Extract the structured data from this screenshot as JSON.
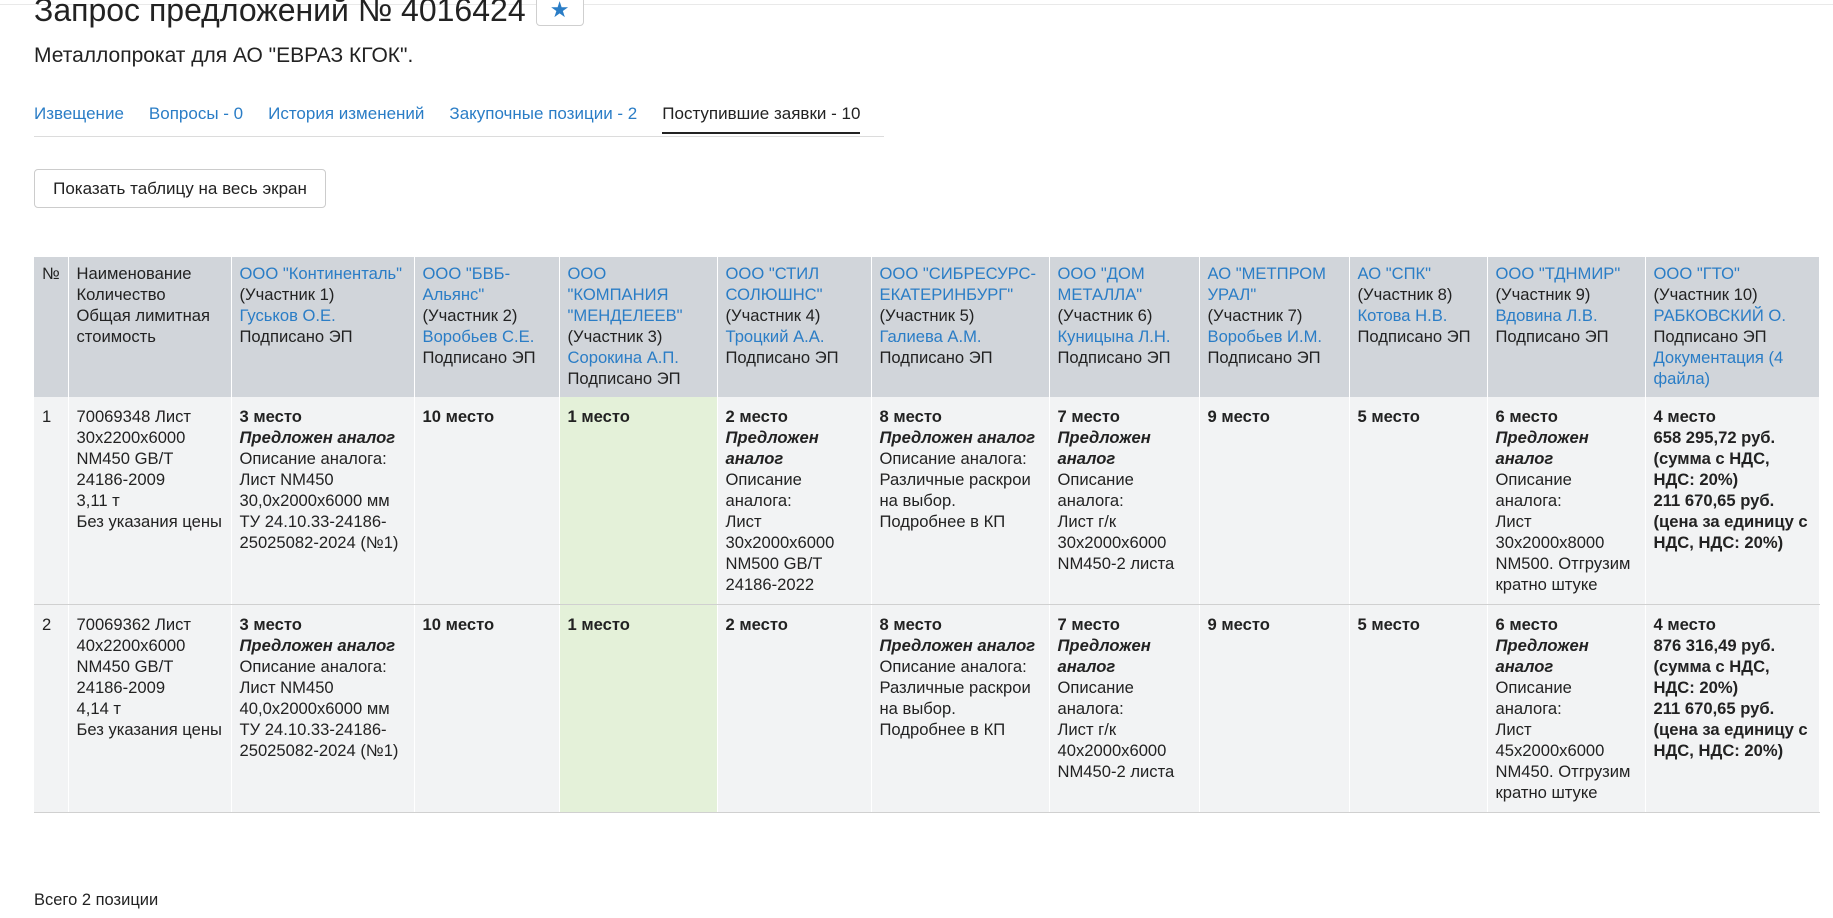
{
  "header": {
    "title": "Запрос предложений № 4016424",
    "star_icon": "★",
    "subtitle": "Металлопрокат для АО \"ЕВРАЗ КГОК\"."
  },
  "tabs": [
    {
      "label": "Извещение",
      "active": false
    },
    {
      "label": "Вопросы - 0",
      "active": false
    },
    {
      "label": "История изменений",
      "active": false
    },
    {
      "label": "Закупочные позиции - 2",
      "active": false
    },
    {
      "label": "Поступившие заявки - 10",
      "active": true
    }
  ],
  "fullscreen_button": "Показать таблицу на весь экран",
  "table": {
    "col_num": "№",
    "col_item": [
      "Наименование",
      "Количество",
      "Общая лимитная стоимость"
    ],
    "participants": [
      {
        "org": "ООО \"Континенталь\"",
        "tag": "(Участник 1)",
        "person": "Гуськов О.Е.",
        "status": "Подписано ЭП"
      },
      {
        "org": "ООО \"БВБ-Альянс\"",
        "tag": "(Участник 2)",
        "person": "Воробьев С.Е.",
        "status": "Подписано ЭП"
      },
      {
        "org": "ООО \"КОМПАНИЯ \"МЕНДЕЛЕЕВ\"",
        "tag": "(Участник 3)",
        "person": "Сорокина А.П.",
        "status": "Подписано ЭП"
      },
      {
        "org": "ООО \"СТИЛ СОЛЮШНС\"",
        "tag": "(Участник 4)",
        "person": "Троцкий А.А.",
        "status": "Подписано ЭП"
      },
      {
        "org": "ООО \"СИБРЕСУРС-ЕКАТЕРИНБУРГ\"",
        "tag": "(Участник 5)",
        "person": "Галиева А.М.",
        "status": "Подписано ЭП"
      },
      {
        "org": "ООО \"ДОМ МЕТАЛЛА\"",
        "tag": "(Участник 6)",
        "person": "Куницына Л.Н.",
        "status": "Подписано ЭП"
      },
      {
        "org": "АО \"МЕТПРОМ УРАЛ\"",
        "tag": "(Участник 7)",
        "person": "Воробьев И.М.",
        "status": "Подписано ЭП"
      },
      {
        "org": "АО \"СПК\"",
        "tag": "(Участник 8)",
        "person": "Котова Н.В.",
        "status": "Подписано ЭП"
      },
      {
        "org": "ООО \"ТДНМИР\"",
        "tag": "(Участник 9)",
        "person": "Вдовина Л.В.",
        "status": "Подписано ЭП"
      },
      {
        "org": "ООО \"ГТО\"",
        "tag": "(Участник 10)",
        "person": "РАБКОВСКИЙ О.",
        "status": "Подписано ЭП",
        "docs": "Документация (4 файла)"
      }
    ],
    "rows": [
      {
        "num": "1",
        "item": [
          "70069348 Лист 30х2200х6000 NM450 GB/T 24186-2009",
          "3,11 т",
          "Без указания цены"
        ],
        "bids": [
          {
            "place": "3 место",
            "analog": "Предложен аналог",
            "desc": [
              "Описание аналога:",
              "Лист NM450 30,0х2000х6000 мм ТУ 24.10.33-24186-25025082-2024 (№1)"
            ]
          },
          {
            "place": "10 место"
          },
          {
            "place": "1 место"
          },
          {
            "place": "2 место",
            "analog": "Предложен аналог",
            "desc": [
              "Описание аналога:",
              "Лист 30х2000х6000 NM500 GB/T 24186-2022"
            ]
          },
          {
            "place": "8 место",
            "analog": "Предложен аналог",
            "desc": [
              "Описание аналога:",
              "Различные раскрои на выбор.",
              "Подробнее в КП"
            ]
          },
          {
            "place": "7 место",
            "analog": "Предложен аналог",
            "desc": [
              "Описание аналога:",
              "Лист г/к 30х2000х6000 NM450-2 листа"
            ]
          },
          {
            "place": "9 место"
          },
          {
            "place": "5 место"
          },
          {
            "place": "6 место",
            "analog": "Предложен аналог",
            "desc": [
              "Описание аналога:",
              "Лист 30х2000х8000 NM500. Отгрузим кратно штуке"
            ]
          },
          {
            "place": "4 место",
            "prices": [
              "658 295,72 руб. (сумма с НДС, НДС: 20%)",
              "211 670,65 руб. (цена за единицу с НДС, НДС: 20%)"
            ]
          }
        ]
      },
      {
        "num": "2",
        "item": [
          "70069362 Лист 40х2200х6000 NM450 GB/T 24186-2009",
          "4,14 т",
          "Без указания цены"
        ],
        "bids": [
          {
            "place": "3 место",
            "analog": "Предложен аналог",
            "desc": [
              "Описание аналога:",
              "Лист NM450 40,0х2000х6000 мм ТУ 24.10.33-24186-25025082-2024 (№1)"
            ]
          },
          {
            "place": "10 место"
          },
          {
            "place": "1 место"
          },
          {
            "place": "2 место"
          },
          {
            "place": "8 место",
            "analog": "Предложен аналог",
            "desc": [
              "Описание аналога:",
              "Различные раскрои на выбор.",
              "Подробнее в КП"
            ]
          },
          {
            "place": "7 место",
            "analog": "Предложен аналог",
            "desc": [
              "Описание аналога:",
              "Лист г/к 40х2000х6000 NM450-2 листа"
            ]
          },
          {
            "place": "9 место"
          },
          {
            "place": "5 место"
          },
          {
            "place": "6 место",
            "analog": "Предложен аналог",
            "desc": [
              "Описание аналога:",
              "Лист 45х2000х6000 NM450. Отгрузим кратно штуке"
            ]
          },
          {
            "place": "4 место",
            "prices": [
              "876 316,49 руб. (сумма с НДС, НДС: 20%)",
              "211 670,65 руб. (цена за единицу с НДС, НДС: 20%)"
            ]
          }
        ]
      }
    ],
    "footer": "Всего 2 позиции"
  },
  "colors": {
    "link": "#2a7dc6",
    "header_bg": "#d1d5da",
    "cell_bg": "#f2f3f4",
    "winner_bg": "#e4f1d9"
  }
}
